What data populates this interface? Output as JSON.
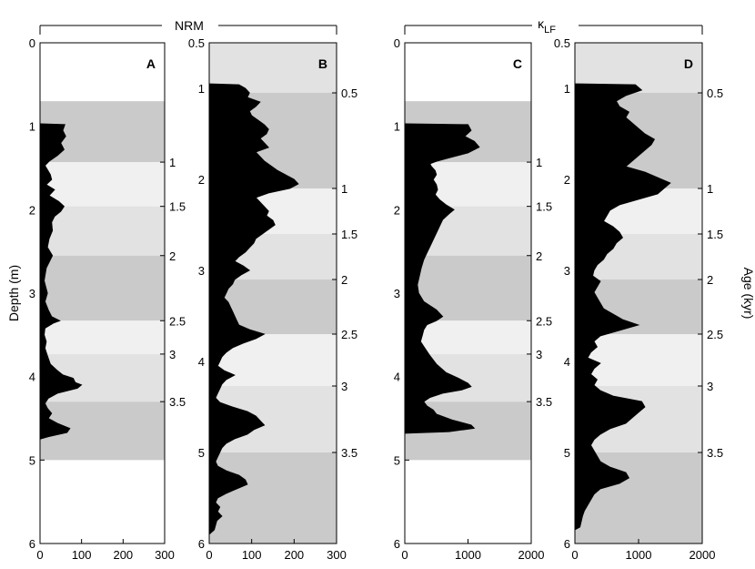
{
  "chart_data": {
    "type": "area",
    "group_labels": {
      "nrm": "NRM",
      "klf_main": "κ",
      "klf_sub": "LF"
    },
    "ylabel_left": "Depth (m)",
    "ylabel_right": "Age (kyr)",
    "panels": [
      {
        "label": "A",
        "xlim": [
          0,
          300
        ],
        "xticks": [
          "0",
          "100",
          "200",
          "300"
        ],
        "ylim": [
          0,
          6
        ],
        "yticks": [
          "0",
          "1",
          "2",
          "3",
          "4",
          "5",
          "6"
        ],
        "age_ticks": [
          {
            "depth": 1.43,
            "label": "1"
          },
          {
            "depth": 1.96,
            "label": "1.5"
          },
          {
            "depth": 2.55,
            "label": "2"
          },
          {
            "depth": 3.33,
            "label": "2.5"
          },
          {
            "depth": 3.73,
            "label": "3"
          },
          {
            "depth": 4.3,
            "label": "3.5"
          }
        ],
        "bands": [
          {
            "top": 0.7,
            "bottom": 1.43,
            "shade": "#cacaca"
          },
          {
            "top": 1.43,
            "bottom": 1.96,
            "shade": "#f0f0f0"
          },
          {
            "top": 1.96,
            "bottom": 2.55,
            "shade": "#e2e2e2"
          },
          {
            "top": 2.55,
            "bottom": 3.33,
            "shade": "#cacaca"
          },
          {
            "top": 3.33,
            "bottom": 3.73,
            "shade": "#f0f0f0"
          },
          {
            "top": 3.73,
            "bottom": 4.3,
            "shade": "#e2e2e2"
          },
          {
            "top": 4.3,
            "bottom": 5.0,
            "shade": "#cacaca"
          }
        ],
        "depth": [
          0.97,
          0.98,
          1.05,
          1.12,
          1.2,
          1.28,
          1.35,
          1.42,
          1.47,
          1.52,
          1.58,
          1.64,
          1.7,
          1.76,
          1.83,
          1.9,
          1.96,
          2.02,
          2.08,
          2.15,
          2.25,
          2.35,
          2.45,
          2.55,
          2.7,
          2.85,
          3.0,
          3.1,
          3.2,
          3.28,
          3.33,
          3.36,
          3.42,
          3.5,
          3.58,
          3.66,
          3.75,
          3.85,
          3.92,
          3.98,
          4.02,
          4.07,
          4.1,
          4.14,
          4.2,
          4.26,
          4.32,
          4.38,
          4.44,
          4.5,
          4.56,
          4.62,
          4.67,
          4.72,
          4.75
        ],
        "values": [
          0,
          60,
          55,
          62,
          50,
          58,
          42,
          22,
          12,
          18,
          25,
          28,
          15,
          35,
          22,
          45,
          58,
          50,
          35,
          28,
          30,
          22,
          18,
          30,
          15,
          10,
          18,
          12,
          20,
          28,
          48,
          32,
          12,
          10,
          15,
          12,
          18,
          25,
          40,
          55,
          80,
          85,
          100,
          90,
          42,
          20,
          12,
          18,
          28,
          20,
          42,
          72,
          65,
          20,
          0
        ]
      },
      {
        "label": "B",
        "xlim": [
          0,
          300
        ],
        "xticks": [
          "0",
          "100",
          "200",
          "300"
        ],
        "ylim": [
          0.5,
          6
        ],
        "yticks": [
          "0.5",
          "1",
          "2",
          "3",
          "4",
          "5",
          "6"
        ],
        "age_ticks": [
          {
            "depth": 1.05,
            "label": "0.5"
          },
          {
            "depth": 2.1,
            "label": "1"
          },
          {
            "depth": 2.6,
            "label": "1.5"
          },
          {
            "depth": 3.1,
            "label": "2"
          },
          {
            "depth": 3.7,
            "label": "2.5"
          },
          {
            "depth": 4.27,
            "label": "3"
          },
          {
            "depth": 5.0,
            "label": "3.5"
          }
        ],
        "bands": [
          {
            "top": 0.5,
            "bottom": 1.05,
            "shade": "#e2e2e2"
          },
          {
            "top": 1.05,
            "bottom": 2.1,
            "shade": "#cacaca"
          },
          {
            "top": 2.1,
            "bottom": 2.6,
            "shade": "#f0f0f0"
          },
          {
            "top": 2.6,
            "bottom": 3.1,
            "shade": "#e2e2e2"
          },
          {
            "top": 3.1,
            "bottom": 3.7,
            "shade": "#cacaca"
          },
          {
            "top": 3.7,
            "bottom": 4.27,
            "shade": "#f0f0f0"
          },
          {
            "top": 4.27,
            "bottom": 5.0,
            "shade": "#e2e2e2"
          },
          {
            "top": 5.0,
            "bottom": 6.0,
            "shade": "#cacaca"
          }
        ],
        "depth": [
          0.95,
          0.96,
          1.0,
          1.05,
          1.1,
          1.15,
          1.2,
          1.25,
          1.3,
          1.35,
          1.4,
          1.45,
          1.5,
          1.55,
          1.6,
          1.65,
          1.7,
          1.75,
          1.8,
          1.85,
          1.9,
          1.95,
          2.0,
          2.05,
          2.1,
          2.15,
          2.2,
          2.25,
          2.3,
          2.35,
          2.4,
          2.45,
          2.5,
          2.55,
          2.6,
          2.65,
          2.7,
          2.75,
          2.8,
          2.85,
          2.9,
          2.95,
          3.0,
          3.05,
          3.1,
          3.15,
          3.2,
          3.25,
          3.3,
          3.35,
          3.4,
          3.45,
          3.5,
          3.55,
          3.6,
          3.65,
          3.7,
          3.75,
          3.8,
          3.85,
          3.9,
          3.95,
          4.0,
          4.05,
          4.1,
          4.15,
          4.2,
          4.25,
          4.3,
          4.35,
          4.4,
          4.45,
          4.5,
          4.55,
          4.6,
          4.65,
          4.7,
          4.75,
          4.8,
          4.85,
          4.9,
          4.95,
          5.0,
          5.05,
          5.1,
          5.15,
          5.2,
          5.25,
          5.3,
          5.35,
          5.4,
          5.45,
          5.5,
          5.55,
          5.6,
          5.65,
          5.7,
          5.75,
          5.8,
          5.85,
          5.9
        ],
        "values": [
          0,
          70,
          85,
          95,
          90,
          120,
          110,
          95,
          100,
          115,
          130,
          140,
          135,
          120,
          130,
          140,
          110,
          120,
          130,
          145,
          160,
          180,
          200,
          210,
          190,
          140,
          110,
          120,
          130,
          140,
          135,
          150,
          155,
          140,
          125,
          110,
          105,
          95,
          85,
          70,
          60,
          80,
          95,
          75,
          60,
          55,
          45,
          40,
          35,
          45,
          50,
          55,
          60,
          65,
          70,
          95,
          130,
          110,
          80,
          55,
          40,
          30,
          25,
          20,
          35,
          60,
          40,
          30,
          25,
          20,
          15,
          25,
          55,
          90,
          110,
          120,
          130,
          105,
          90,
          60,
          40,
          30,
          25,
          20,
          15,
          20,
          40,
          70,
          85,
          90,
          65,
          40,
          20,
          15,
          25,
          20,
          30,
          18,
          15,
          12,
          0
        ]
      },
      {
        "label": "C",
        "xlim": [
          0,
          2000
        ],
        "xticks": [
          "0",
          "1000",
          "2000"
        ],
        "ylim": [
          0,
          6
        ],
        "yticks": [
          "0",
          "1",
          "2",
          "3",
          "4",
          "5",
          "6"
        ],
        "age_ticks": [
          {
            "depth": 1.43,
            "label": "1"
          },
          {
            "depth": 1.96,
            "label": "1.5"
          },
          {
            "depth": 2.55,
            "label": "2"
          },
          {
            "depth": 3.33,
            "label": "2.5"
          },
          {
            "depth": 3.73,
            "label": "3"
          },
          {
            "depth": 4.3,
            "label": "3.5"
          }
        ],
        "bands": [
          {
            "top": 0.7,
            "bottom": 1.43,
            "shade": "#cacaca"
          },
          {
            "top": 1.43,
            "bottom": 1.96,
            "shade": "#f0f0f0"
          },
          {
            "top": 1.96,
            "bottom": 2.55,
            "shade": "#e2e2e2"
          },
          {
            "top": 2.55,
            "bottom": 3.33,
            "shade": "#cacaca"
          },
          {
            "top": 3.33,
            "bottom": 3.73,
            "shade": "#f0f0f0"
          },
          {
            "top": 3.73,
            "bottom": 4.3,
            "shade": "#e2e2e2"
          },
          {
            "top": 4.3,
            "bottom": 5.0,
            "shade": "#cacaca"
          }
        ],
        "depth": [
          0.97,
          0.98,
          1.05,
          1.12,
          1.18,
          1.25,
          1.32,
          1.38,
          1.42,
          1.45,
          1.48,
          1.53,
          1.58,
          1.64,
          1.7,
          1.76,
          1.82,
          1.88,
          1.94,
          2.0,
          2.05,
          2.12,
          2.2,
          2.28,
          2.36,
          2.44,
          2.52,
          2.6,
          2.7,
          2.8,
          2.9,
          3.0,
          3.1,
          3.2,
          3.28,
          3.33,
          3.38,
          3.44,
          3.5,
          3.58,
          3.66,
          3.75,
          3.85,
          3.95,
          4.02,
          4.08,
          4.12,
          4.16,
          4.2,
          4.25,
          4.3,
          4.35,
          4.4,
          4.45,
          4.52,
          4.58,
          4.62,
          4.66,
          4.68
        ],
        "values": [
          0,
          1000,
          1050,
          950,
          1100,
          1180,
          1000,
          700,
          500,
          400,
          420,
          480,
          500,
          450,
          500,
          520,
          480,
          550,
          650,
          780,
          700,
          600,
          550,
          500,
          450,
          400,
          350,
          300,
          260,
          230,
          200,
          220,
          300,
          500,
          600,
          500,
          350,
          300,
          280,
          250,
          320,
          400,
          500,
          650,
          850,
          1000,
          1050,
          900,
          600,
          400,
          300,
          350,
          450,
          500,
          750,
          1050,
          1100,
          700,
          0
        ]
      },
      {
        "label": "D",
        "xlim": [
          0,
          2000
        ],
        "xticks": [
          "0",
          "1000",
          "2000"
        ],
        "ylim": [
          0.5,
          6
        ],
        "yticks": [
          "0.5",
          "1",
          "2",
          "3",
          "4",
          "5",
          "6"
        ],
        "age_ticks": [
          {
            "depth": 1.05,
            "label": "0.5"
          },
          {
            "depth": 2.1,
            "label": "1"
          },
          {
            "depth": 2.6,
            "label": "1.5"
          },
          {
            "depth": 3.1,
            "label": "2"
          },
          {
            "depth": 3.7,
            "label": "2.5"
          },
          {
            "depth": 4.27,
            "label": "3"
          },
          {
            "depth": 5.0,
            "label": "3.5"
          }
        ],
        "bands": [
          {
            "top": 0.5,
            "bottom": 1.05,
            "shade": "#e2e2e2"
          },
          {
            "top": 1.05,
            "bottom": 2.1,
            "shade": "#cacaca"
          },
          {
            "top": 2.1,
            "bottom": 2.6,
            "shade": "#f0f0f0"
          },
          {
            "top": 2.6,
            "bottom": 3.1,
            "shade": "#e2e2e2"
          },
          {
            "top": 3.1,
            "bottom": 3.7,
            "shade": "#cacaca"
          },
          {
            "top": 3.7,
            "bottom": 4.27,
            "shade": "#f0f0f0"
          },
          {
            "top": 4.27,
            "bottom": 5.0,
            "shade": "#e2e2e2"
          },
          {
            "top": 5.0,
            "bottom": 6.0,
            "shade": "#cacaca"
          }
        ],
        "depth": [
          0.95,
          0.96,
          1.02,
          1.08,
          1.14,
          1.2,
          1.26,
          1.32,
          1.38,
          1.44,
          1.5,
          1.56,
          1.62,
          1.68,
          1.74,
          1.8,
          1.86,
          1.92,
          1.98,
          2.04,
          2.1,
          2.16,
          2.22,
          2.28,
          2.34,
          2.4,
          2.46,
          2.52,
          2.58,
          2.64,
          2.7,
          2.76,
          2.82,
          2.88,
          2.94,
          3.0,
          3.06,
          3.12,
          3.18,
          3.24,
          3.3,
          3.36,
          3.42,
          3.48,
          3.54,
          3.6,
          3.66,
          3.72,
          3.78,
          3.84,
          3.9,
          3.96,
          4.02,
          4.08,
          4.14,
          4.2,
          4.26,
          4.32,
          4.38,
          4.44,
          4.5,
          4.56,
          4.62,
          4.68,
          4.74,
          4.8,
          4.86,
          4.92,
          4.98,
          5.04,
          5.1,
          5.16,
          5.22,
          5.28,
          5.34,
          5.4,
          5.46,
          5.52,
          5.58,
          5.64,
          5.7,
          5.76,
          5.82,
          5.85
        ],
        "values": [
          0,
          950,
          1050,
          800,
          650,
          700,
          850,
          800,
          900,
          1000,
          1100,
          1250,
          1200,
          1100,
          1000,
          900,
          800,
          1100,
          1300,
          1500,
          1400,
          1300,
          1000,
          700,
          550,
          500,
          450,
          600,
          700,
          750,
          650,
          600,
          500,
          450,
          350,
          300,
          280,
          400,
          350,
          300,
          350,
          400,
          450,
          600,
          750,
          1000,
          700,
          400,
          300,
          350,
          250,
          200,
          400,
          300,
          250,
          350,
          300,
          400,
          600,
          1050,
          1100,
          1000,
          900,
          800,
          550,
          400,
          300,
          250,
          300,
          350,
          400,
          550,
          800,
          850,
          700,
          400,
          300,
          250,
          200,
          150,
          120,
          100,
          80,
          0
        ]
      }
    ]
  }
}
